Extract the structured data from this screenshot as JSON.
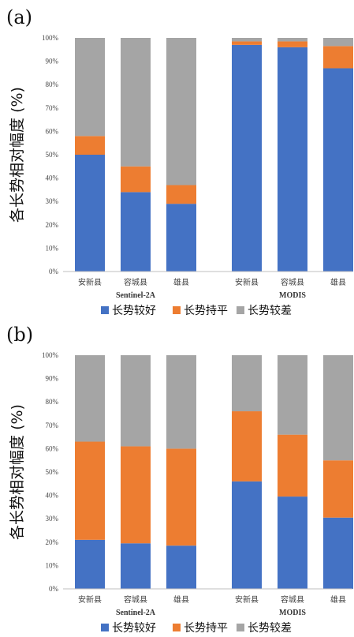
{
  "chart_data": [
    {
      "panel": "(a)",
      "type": "bar",
      "stacked": true,
      "ylabel": "各长势相对幅度 (%)",
      "ylim": [
        0,
        100
      ],
      "yticks": [
        "0%",
        "10%",
        "20%",
        "30%",
        "40%",
        "50%",
        "60%",
        "70%",
        "80%",
        "90%",
        "100%"
      ],
      "groups": [
        {
          "label": "Sentinel-2A",
          "categories": [
            "安新县",
            "容城县",
            "雄县"
          ]
        },
        {
          "label": "MODIS",
          "categories": [
            "安新县",
            "容城县",
            "雄县"
          ]
        }
      ],
      "series": [
        {
          "name": "长势较好",
          "color": "#4472C4",
          "values": [
            50,
            34,
            29,
            97,
            96,
            87
          ]
        },
        {
          "name": "长势持平",
          "color": "#ED7D31",
          "values": [
            8,
            11,
            8,
            1.5,
            2.5,
            9.5
          ]
        },
        {
          "name": "长势较差",
          "color": "#A5A5A5",
          "values": [
            42,
            55,
            63,
            1.5,
            1.5,
            3.5
          ]
        }
      ],
      "legend_position": "bottom",
      "grid": false
    },
    {
      "panel": "(b)",
      "type": "bar",
      "stacked": true,
      "ylabel": "各长势相对幅度 (%)",
      "ylim": [
        0,
        100
      ],
      "yticks": [
        "0%",
        "10%",
        "20%",
        "30%",
        "40%",
        "50%",
        "60%",
        "70%",
        "80%",
        "90%",
        "100%"
      ],
      "groups": [
        {
          "label": "Sentinel-2A",
          "categories": [
            "安新县",
            "容城县",
            "雄县"
          ]
        },
        {
          "label": "MODIS",
          "categories": [
            "安新县",
            "容城县",
            "雄县"
          ]
        }
      ],
      "series": [
        {
          "name": "长势较好",
          "color": "#4472C4",
          "values": [
            21,
            19.5,
            18.5,
            46,
            39.5,
            30.5
          ]
        },
        {
          "name": "长势持平",
          "color": "#ED7D31",
          "values": [
            42,
            41.5,
            41.5,
            30,
            26.5,
            24.5
          ]
        },
        {
          "name": "长势较差",
          "color": "#A5A5A5",
          "values": [
            37,
            39,
            40,
            24,
            34,
            45
          ]
        }
      ],
      "legend_position": "bottom",
      "grid": false
    }
  ]
}
